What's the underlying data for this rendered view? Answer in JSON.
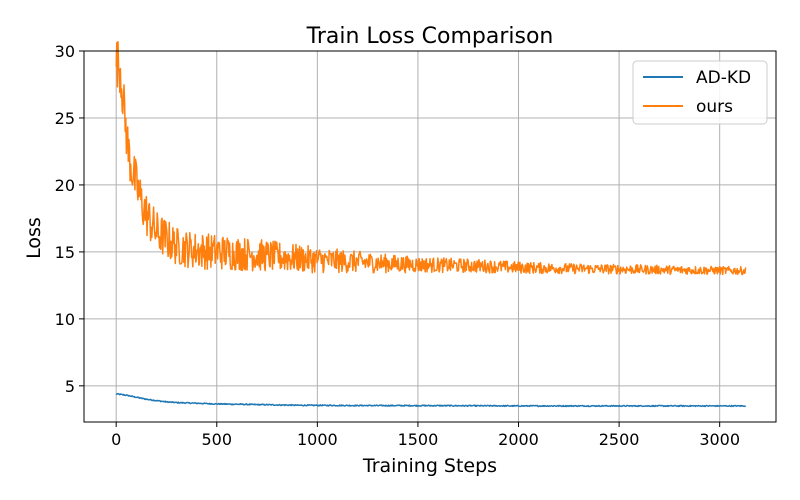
{
  "chart_data": {
    "type": "line",
    "title": "Train Loss Comparison",
    "xlabel": "Training Steps",
    "ylabel": "Loss",
    "xlim": [
      -160,
      3280
    ],
    "ylim": [
      2.3,
      30
    ],
    "xticks": [
      0,
      500,
      1000,
      1500,
      2000,
      2500,
      3000
    ],
    "yticks": [
      5,
      10,
      15,
      20,
      25,
      30
    ],
    "grid": true,
    "legend_position": "top-right",
    "series": [
      {
        "name": "AD-KD",
        "color": "#1f77b4",
        "x": [
          0,
          50,
          100,
          150,
          200,
          250,
          300,
          400,
          500,
          700,
          900,
          1200,
          1600,
          2000,
          2500,
          3000,
          3130
        ],
        "y": [
          4.4,
          4.3,
          4.15,
          4.0,
          3.9,
          3.8,
          3.75,
          3.7,
          3.65,
          3.6,
          3.55,
          3.53,
          3.52,
          3.5,
          3.5,
          3.5,
          3.5
        ],
        "noise": 0.04
      },
      {
        "name": "ours",
        "color": "#ff7f0e",
        "x": [
          0,
          20,
          40,
          60,
          80,
          100,
          130,
          160,
          200,
          250,
          300,
          350,
          400,
          500,
          600,
          700,
          800,
          900,
          1000,
          1200,
          1400,
          1600,
          1800,
          2000,
          2200,
          2500,
          2800,
          3130
        ],
        "y": [
          28.7,
          28.2,
          25.0,
          22.0,
          20.5,
          19.5,
          18.0,
          17.0,
          16.0,
          15.5,
          15.0,
          14.8,
          14.7,
          14.6,
          14.5,
          14.4,
          14.3,
          14.2,
          14.1,
          14.0,
          13.9,
          13.85,
          13.8,
          13.7,
          13.65,
          13.6,
          13.55,
          13.5
        ],
        "floor": 13.3,
        "noise_decay": [
          [
            0,
            3.0
          ],
          [
            300,
            2.2
          ],
          [
            600,
            2.0
          ],
          [
            1000,
            1.5
          ],
          [
            1500,
            0.9
          ],
          [
            2200,
            0.6
          ],
          [
            3130,
            0.45
          ]
        ]
      }
    ]
  }
}
